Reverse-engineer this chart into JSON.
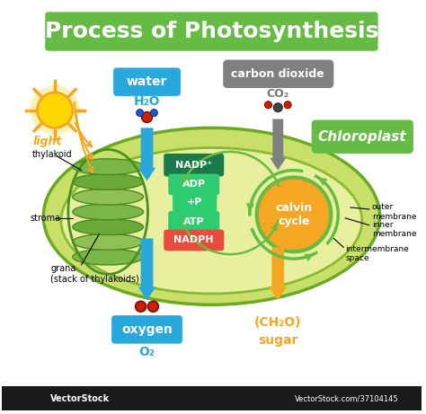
{
  "title": "Process of Photosynthesis",
  "title_bg": "#66bb44",
  "title_color": "white",
  "title_fontsize": 18,
  "bg_color": "white",
  "bottom_bar_color": "#1a1a1a",
  "labels": {
    "light": "light",
    "water": "water",
    "water_formula": "H₂O",
    "carbon_dioxide": "carbon dioxide",
    "co2": "CO₂",
    "chloroplast": "Chloroplast",
    "thylakoid": "thylakoid",
    "stroma": "stroma",
    "grana": "grana\n(stack of thylakoids)",
    "oxygen": "oxygen",
    "o2": "O₂",
    "sugar_formula": "(CH₂O)",
    "sugar": "sugar",
    "nadp": "NADP⁺",
    "adp": "ADP",
    "p": "+P",
    "atp": "ATP",
    "nadph": "NADPH",
    "calvin": "calvin\ncycle",
    "outer_membrane": "outer\nmembrane",
    "inner_membrane": "inner\nmembrane",
    "intermembrane": "intermembrane\nspace",
    "vectorstock": "VectorStock",
    "vectorstock_url": "VectorStock.com/37104145"
  },
  "colors": {
    "chloroplast_outer": "#c8e06a",
    "chloroplast_inner": "#e8f0a0",
    "grana_color": "#7ab648",
    "grana_dark": "#5a9030",
    "water_arrow": "#29a8dc",
    "co2_arrow": "#808080",
    "oxygen_arrow": "#29a8dc",
    "sugar_arrow": "#f5a623",
    "sun_orange": "#f5a623",
    "sun_yellow": "#ffd700",
    "light_label": "#f5a623",
    "water_label_bg": "#29a8dc",
    "co2_label_bg": "#808080",
    "chloroplast_label_bg": "#66bb44",
    "oxygen_label_bg": "#29a8dc",
    "sugar_label_color": "#f5a623",
    "nadp_bg": "#1a7a4a",
    "adp_bg": "#2ecc71",
    "p_bg": "#2ecc71",
    "atp_bg": "#2ecc71",
    "nadph_bg": "#e74c3c",
    "calvin_bg": "#f5a623",
    "calvin_ring": "#66bb44",
    "molecule_red": "#cc2200",
    "molecule_dark": "#333333"
  }
}
